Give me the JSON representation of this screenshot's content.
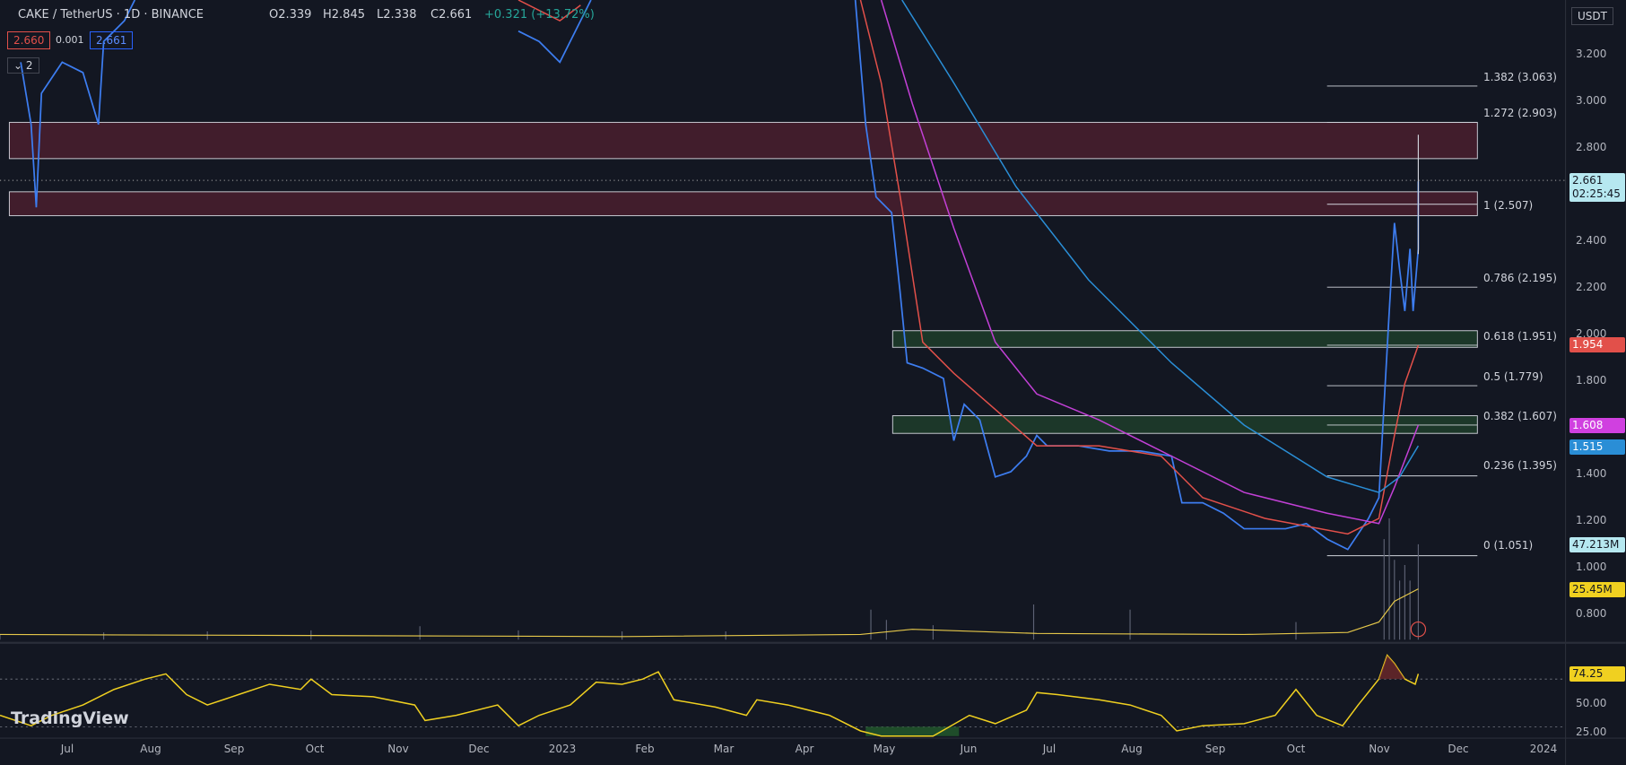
{
  "header": {
    "symbol": "CAKE / TetherUS · 1D · BINANCE",
    "open": "O2.339",
    "high": "H2.845",
    "low": "L2.338",
    "close": "C2.661",
    "change": "+0.321 (+13.72%)",
    "bid": "2.660",
    "spread": "0.001",
    "ask": "2.661",
    "indicator_count": "2",
    "currency": "USDT"
  },
  "price_axis": [
    "3.200",
    "3.000",
    "2.800",
    "2.400",
    "2.200",
    "2.000",
    "1.800",
    "1.400",
    "1.200",
    "1.000",
    "0.800"
  ],
  "fib_levels": [
    "1.382 (3.063)",
    "1.272 (2.903)",
    "1 (2.507)",
    "0.786 (2.195)",
    "0.618 (1.951)",
    "0.5 (1.779)",
    "0.382 (1.607)",
    "0.236 (1.395)",
    "0 (1.051)"
  ],
  "badges": {
    "last_price": "2.661",
    "countdown": "02:25:45",
    "ma_red": "1.954",
    "ma_magenta": "1.608",
    "ma_blue": "1.515",
    "volume": "47.213M",
    "volume_ma": "25.45M",
    "rsi": "74.25"
  },
  "rsi_axis": [
    "50.00",
    "25.00"
  ],
  "logo": "TradingView",
  "time_axis": [
    "Jul",
    "Aug",
    "Sep",
    "Oct",
    "Nov",
    "Dec",
    "2023",
    "Feb",
    "Mar",
    "Apr",
    "May",
    "Jun",
    "Jul",
    "Aug",
    "Sep",
    "Oct",
    "Nov",
    "Dec",
    "2024"
  ]
}
